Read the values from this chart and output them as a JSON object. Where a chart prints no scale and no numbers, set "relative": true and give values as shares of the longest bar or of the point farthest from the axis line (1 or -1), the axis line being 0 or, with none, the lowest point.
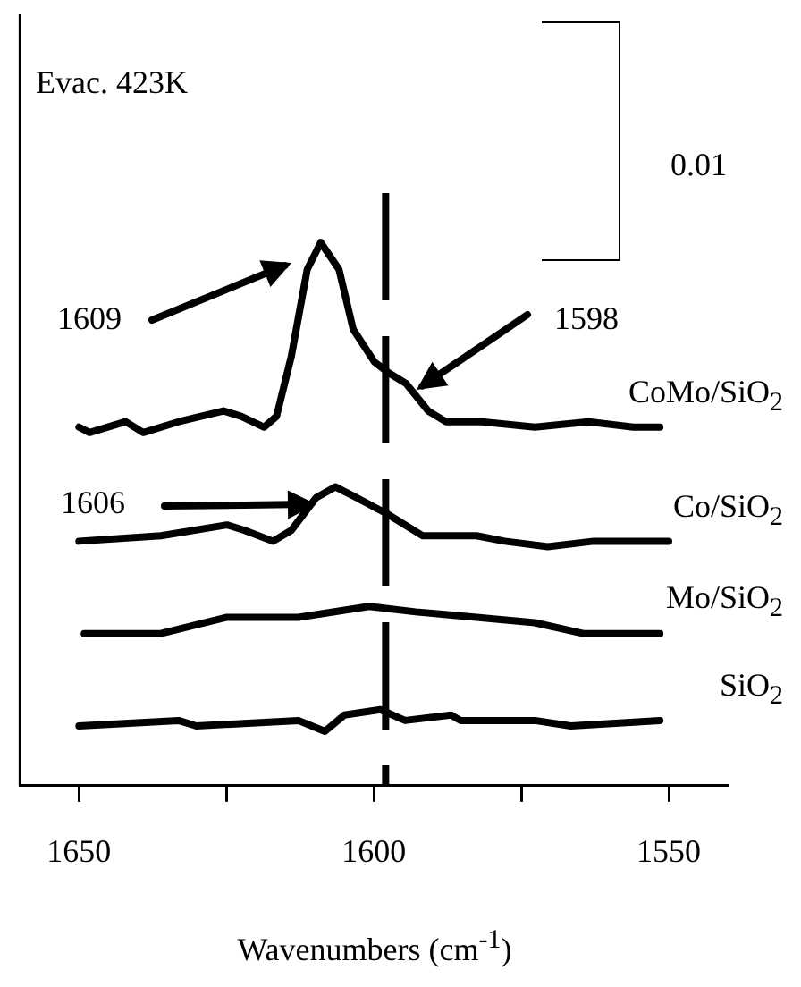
{
  "chart_data": {
    "type": "line",
    "relative": true,
    "xlabel": "Wavenumbers (cm$^{-1}$)",
    "xlim": [
      1660,
      1540
    ],
    "xticks": [
      1650,
      {
        "value": 1625,
        "label": null
      },
      1600,
      {
        "value": 1575,
        "label": null
      },
      1550
    ],
    "grid": false,
    "legend": false,
    "marker": "none",
    "line_style": "solid",
    "annotations": [
      "Evac. 423K",
      "0.01",
      "1609",
      "1598",
      "1606"
    ],
    "ref_lines": [
      {
        "axis": "x",
        "value": 1598,
        "color": "#000000",
        "line_style": "dashed"
      }
    ],
    "series": [
      {
        "name": "CoMo/SiO$_{2}$",
        "color": "#000000",
        "x": [
          1650,
          1648.2,
          1642.1,
          1639.1,
          1633.1,
          1625.5,
          1622.5,
          1618.6,
          1616.5,
          1614,
          1611.3,
          1609,
          1605.9,
          1603.5,
          1599.9,
          1597.5,
          1594.5,
          1590.8,
          1587.8,
          1581.7,
          1572.7,
          1563.6,
          1556,
          1551.5
        ],
        "values": [
          0.66,
          0.65,
          0.67,
          0.65,
          0.67,
          0.69,
          0.68,
          0.66,
          0.68,
          0.79,
          0.95,
          1.0,
          0.95,
          0.84,
          0.78,
          0.76,
          0.74,
          0.69,
          0.67,
          0.67,
          0.66,
          0.67,
          0.66,
          0.66
        ]
      },
      {
        "name": "Co/SiO$_{2}$",
        "color": "#000000",
        "x": [
          1650,
          1636.1,
          1624.9,
          1621.9,
          1617.1,
          1614,
          1609.8,
          1606.5,
          1602.9,
          1597.7,
          1591.7,
          1582.6,
          1577.8,
          1570.5,
          1562.7,
          1553.6,
          1550
        ],
        "values": [
          0.45,
          0.46,
          0.48,
          0.47,
          0.45,
          0.47,
          0.53,
          0.55,
          0.53,
          0.5,
          0.46,
          0.46,
          0.45,
          0.44,
          0.45,
          0.45,
          0.45
        ]
      },
      {
        "name": "Mo/SiO$_{2}$",
        "color": "#000000",
        "x": [
          1649.1,
          1636.1,
          1624.9,
          1612.8,
          1600.8,
          1592.9,
          1582.6,
          1572.7,
          1564.5,
          1551.5
        ],
        "values": [
          0.28,
          0.28,
          0.31,
          0.31,
          0.33,
          0.32,
          0.31,
          0.3,
          0.28,
          0.28
        ]
      },
      {
        "name": "SiO$_{2}$",
        "color": "#000000",
        "x": [
          1650,
          1633.1,
          1630.1,
          1612.8,
          1608.3,
          1605,
          1598.9,
          1594.7,
          1586.9,
          1585.3,
          1572.7,
          1566.6,
          1551.5
        ],
        "values": [
          0.11,
          0.12,
          0.11,
          0.12,
          0.1,
          0.13,
          0.14,
          0.12,
          0.13,
          0.12,
          0.12,
          0.11,
          0.12
        ]
      }
    ]
  }
}
